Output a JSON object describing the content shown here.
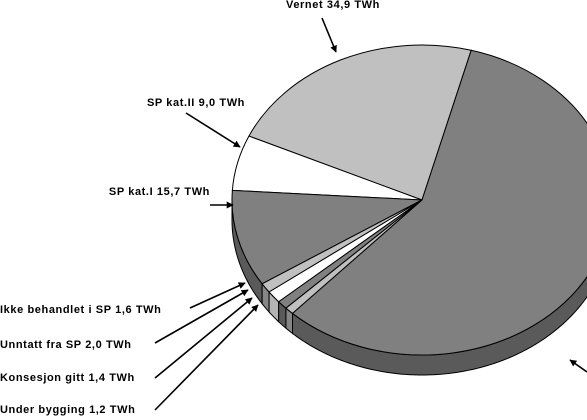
{
  "chart_data": {
    "type": "pie3d",
    "values": [
      34.9,
      9.0,
      15.7,
      1.6,
      2.0,
      1.4,
      1.2,
      90
    ],
    "value_labels": [
      "Vernet 34,9 TWh",
      "SP kat.II 9,0 TWh",
      "SP kat.I 15,7 TWh",
      "Ikke behandlet i SP 1,6 TWh",
      "Unntatt fra SP 2,0 TWh",
      "Konsesjon gitt 1,4 TWh",
      "Under bygging 1,2 TWh",
      null
    ],
    "colors": [
      "#c0c0c0",
      "#ffffff",
      "#808080",
      "#c0c0c0",
      "#ffffff",
      "#808080",
      "#c0c0c0",
      "#808080"
    ]
  }
}
